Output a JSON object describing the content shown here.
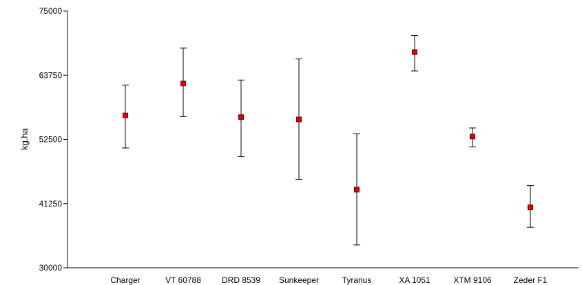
{
  "chart_data": {
    "type": "scatter",
    "title": "",
    "xlabel": "",
    "ylabel": "kg.ha",
    "ylim": [
      30000,
      75000
    ],
    "yticks": [
      30000,
      41250,
      52500,
      63750,
      75000
    ],
    "grid": false,
    "legend": "none",
    "marker_color": "#e00000",
    "marker_edge": "#800000",
    "categories": [
      "Charger",
      "VT 60788",
      "DRD 8539",
      "Sunkeeper",
      "Tyranus",
      "XA 1051",
      "XTM 9106",
      "Zeder F1"
    ],
    "series": [
      {
        "values": [
          56700,
          62300,
          56400,
          56000,
          43700,
          67800,
          53000,
          40600
        ],
        "upper": [
          62000,
          68500,
          62900,
          66600,
          53500,
          70700,
          54500,
          44400
        ],
        "lower": [
          51000,
          56500,
          49500,
          45500,
          34000,
          64500,
          51200,
          37100
        ]
      }
    ]
  }
}
